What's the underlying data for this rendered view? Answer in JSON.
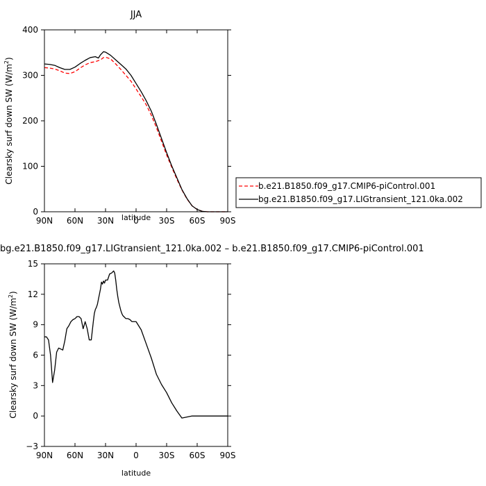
{
  "chart_data": [
    {
      "type": "line",
      "title": "JJA",
      "xlabel": "latitude",
      "ylabel": "Clearsky surf down SW (W/m²)",
      "ylabel_parts": {
        "main": "Clearsky surf down SW (W/m",
        "sup": "2",
        "close": ")"
      },
      "x_ticks": [
        90,
        60,
        30,
        0,
        -30,
        -60,
        -90
      ],
      "x_tick_labels": [
        "90N",
        "60N",
        "30N",
        "0",
        "30S",
        "60S",
        "90S"
      ],
      "xlim": [
        90,
        -90
      ],
      "y_ticks": [
        0,
        100,
        200,
        300,
        400
      ],
      "y_tick_labels": [
        "0",
        "100",
        "200",
        "300",
        "400"
      ],
      "ylim": [
        0,
        400
      ],
      "legend_position": "right",
      "series": [
        {
          "name": "b.e21.B1850.f09_g17.CMIP6-piControl.001",
          "color": "#ff0000",
          "dash": "dashed",
          "x": [
            90,
            85,
            80,
            75,
            70,
            65,
            60,
            55,
            50,
            45,
            40,
            35,
            32,
            30,
            25,
            20,
            15,
            10,
            5,
            0,
            -5,
            -10,
            -15,
            -20,
            -25,
            -30,
            -35,
            -40,
            -45,
            -50,
            -55,
            -60,
            -65,
            -70,
            -75,
            -80,
            -85,
            -90
          ],
          "y": [
            317,
            316,
            314,
            310,
            305,
            304,
            308,
            316,
            323,
            328,
            330,
            334,
            339,
            340,
            336,
            325,
            313,
            300,
            287,
            270,
            253,
            235,
            212,
            185,
            155,
            125,
            98,
            72,
            48,
            28,
            13,
            5,
            1,
            0,
            0,
            0,
            0,
            0
          ]
        },
        {
          "name": "bg.e21.B1850.f09_g17.LIGtransient_121.0ka.002",
          "color": "#000000",
          "dash": "solid",
          "x": [
            90,
            85,
            80,
            75,
            70,
            65,
            60,
            55,
            50,
            45,
            40,
            37,
            35,
            32,
            30,
            25,
            20,
            15,
            10,
            5,
            0,
            -5,
            -10,
            -15,
            -20,
            -25,
            -30,
            -35,
            -40,
            -45,
            -50,
            -55,
            -60,
            -65,
            -70,
            -75,
            -80,
            -85,
            -90
          ],
          "y": [
            325,
            324,
            322,
            317,
            313,
            313,
            318,
            326,
            333,
            339,
            341,
            338,
            345,
            352,
            351,
            344,
            334,
            324,
            314,
            300,
            282,
            264,
            244,
            221,
            192,
            161,
            130,
            101,
            75,
            49,
            29,
            13,
            5,
            1,
            0,
            0,
            0,
            0,
            0
          ]
        }
      ]
    },
    {
      "type": "line",
      "title": "bg.e21.B1850.f09_g17.LIGtransient_121.0ka.002 – b.e21.B1850.f09_g17.CMIP6-piControl.001",
      "xlabel": "latitude",
      "ylabel": "Clearsky surf down SW (W/m²)",
      "ylabel_parts": {
        "main": "Clearsky surf down SW (W/m",
        "sup": "2",
        "close": ")"
      },
      "x_ticks": [
        90,
        60,
        30,
        0,
        -30,
        -60,
        -90
      ],
      "x_tick_labels": [
        "90N",
        "60N",
        "30N",
        "0",
        "30S",
        "60S",
        "90S"
      ],
      "xlim": [
        90,
        -90
      ],
      "y_ticks": [
        -3,
        0,
        3,
        6,
        9,
        12,
        15
      ],
      "y_tick_labels": [
        "−3",
        "0",
        "3",
        "6",
        "9",
        "12",
        "15"
      ],
      "ylim": [
        -3,
        15
      ],
      "series": [
        {
          "color": "#000000",
          "dash": "solid",
          "x": [
            90,
            88,
            86,
            84,
            82,
            80,
            78,
            76,
            74,
            72,
            70,
            68,
            66,
            64,
            62,
            60,
            58,
            56,
            54,
            52,
            50,
            48,
            46,
            44,
            42,
            41,
            40,
            39,
            38,
            37,
            36,
            35,
            34,
            33,
            32,
            31,
            30,
            28,
            26,
            24,
            22,
            21,
            20,
            19,
            18,
            17,
            16,
            15,
            14,
            13,
            12,
            10,
            8,
            6,
            4,
            2,
            0,
            -5,
            -10,
            -15,
            -20,
            -25,
            -30,
            -35,
            -40,
            -45,
            -50,
            -55,
            -60,
            -65,
            -68,
            -70,
            -75,
            -80,
            -85,
            -90
          ],
          "y": [
            7.8,
            7.8,
            7.5,
            6.0,
            3.3,
            4.5,
            6.3,
            6.7,
            6.6,
            6.5,
            7.4,
            8.6,
            8.9,
            9.3,
            9.5,
            9.6,
            9.8,
            9.8,
            9.6,
            8.6,
            9.3,
            8.6,
            7.5,
            7.5,
            9.3,
            10.1,
            10.5,
            10.7,
            11.0,
            11.5,
            12.0,
            12.5,
            13.2,
            13.0,
            13.3,
            13.1,
            13.4,
            13.4,
            14.0,
            14.1,
            14.3,
            14.1,
            13.4,
            12.5,
            11.8,
            11.2,
            10.8,
            10.4,
            10.1,
            9.9,
            9.8,
            9.6,
            9.6,
            9.5,
            9.3,
            9.3,
            9.3,
            8.5,
            7.1,
            5.7,
            4.1,
            3.1,
            2.3,
            1.3,
            0.5,
            -0.2,
            -0.1,
            0.0,
            0.0,
            0.0,
            0.0,
            0.0,
            0.0,
            0.0,
            0.0,
            0.0
          ]
        }
      ]
    }
  ]
}
